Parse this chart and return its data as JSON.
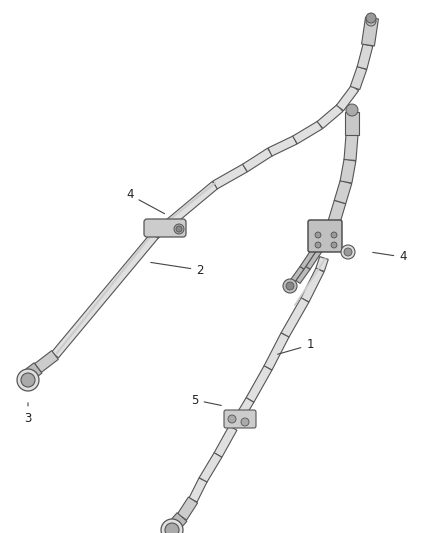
{
  "background_color": "#ffffff",
  "line_color": "#555555",
  "label_color": "#333333",
  "tube_fill": "#e8e8e8",
  "tube_edge": "#555555",
  "figsize": [
    4.38,
    5.33
  ],
  "dpi": 100,
  "tube_lw": 1.0,
  "label_fontsize": 8.5
}
